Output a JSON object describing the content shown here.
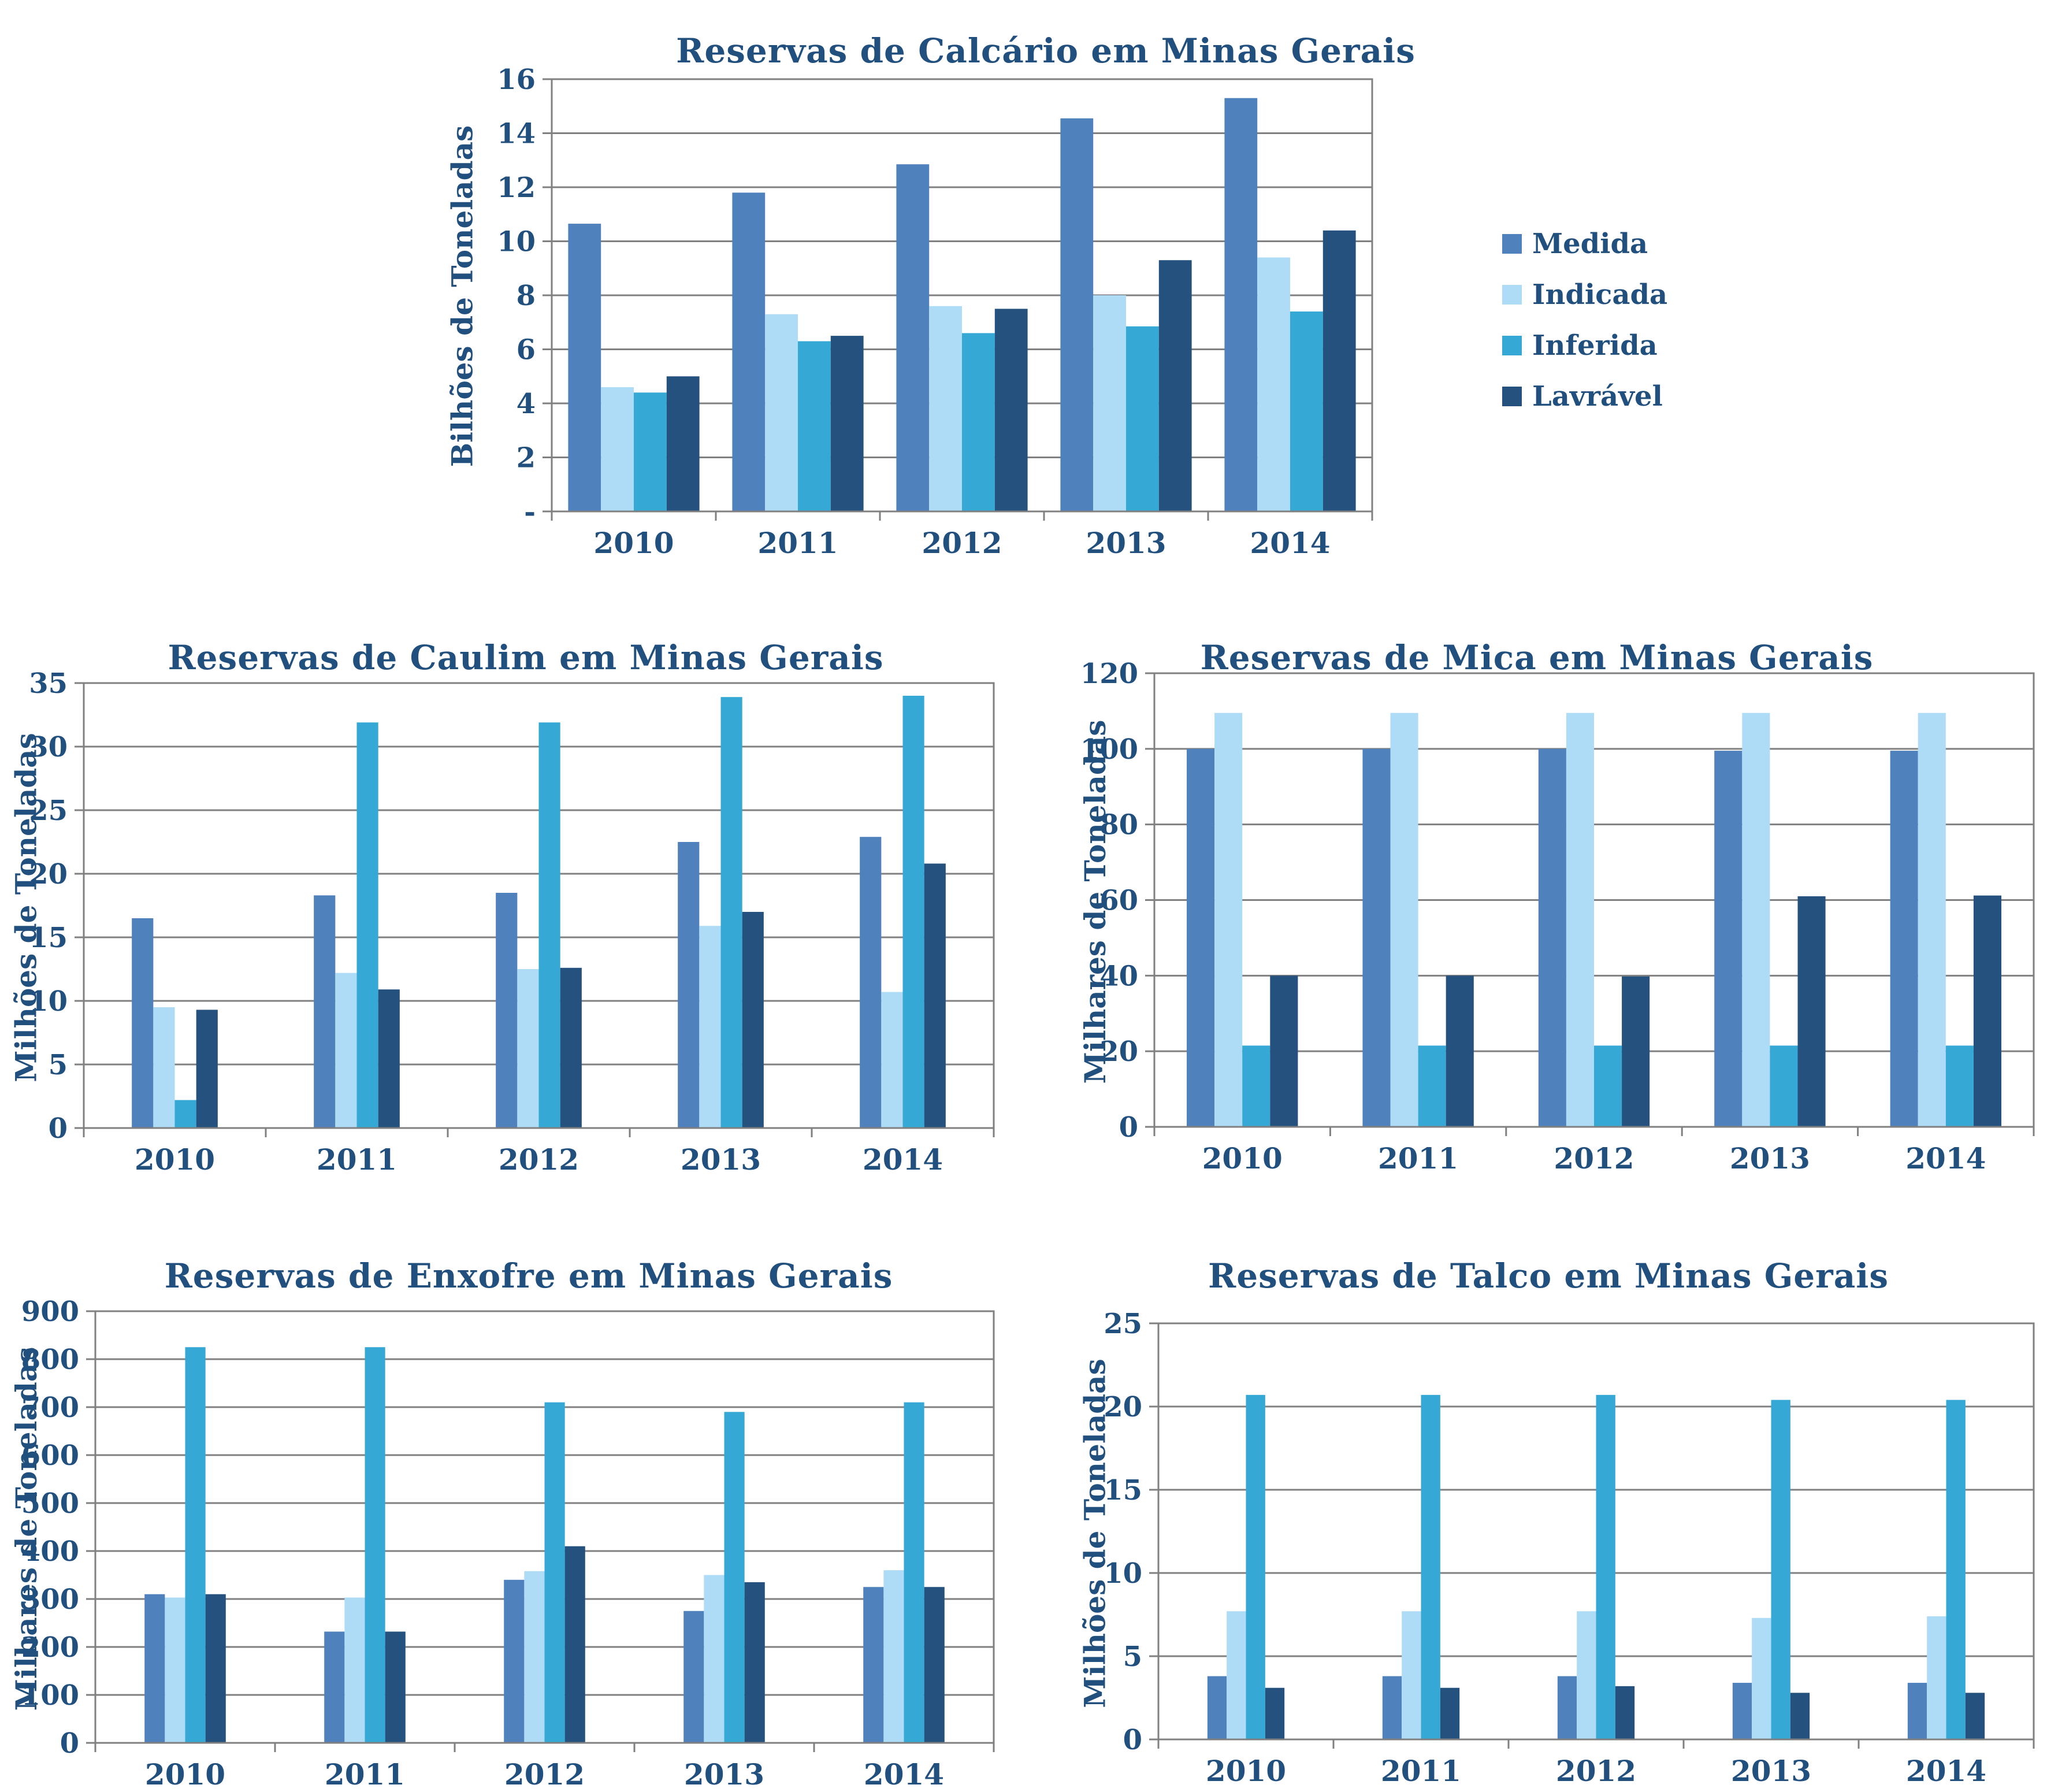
{
  "colors": {
    "text": "#22507E",
    "grid": "#808080",
    "axis": "#808080",
    "background": "#FFFFFF",
    "series": [
      {
        "name": "Medida",
        "color": "#4F81BD"
      },
      {
        "name": "Indicada",
        "color": "#AEDCF6"
      },
      {
        "name": "Inferida",
        "color": "#35A8D5"
      },
      {
        "name": "Lavrável",
        "color": "#24517E"
      }
    ]
  },
  "legend": {
    "position": "right of first chart",
    "items": [
      "Medida",
      "Indicada",
      "Inferida",
      "Lavrável"
    ]
  },
  "chart_data": [
    {
      "id": "calcario",
      "type": "bar",
      "title": "Reservas de Calcário em Minas Gerais",
      "ylabel": "Bilhões de Toneladas",
      "categories": [
        "2010",
        "2011",
        "2012",
        "2013",
        "2014"
      ],
      "series": [
        {
          "name": "Medida",
          "values": [
            10.65,
            11.8,
            12.85,
            14.55,
            15.3
          ]
        },
        {
          "name": "Indicada",
          "values": [
            4.6,
            7.3,
            7.6,
            8.0,
            9.4
          ]
        },
        {
          "name": "Inferida",
          "values": [
            4.4,
            6.3,
            6.6,
            6.85,
            7.4
          ]
        },
        {
          "name": "Lavrável",
          "values": [
            5.0,
            6.5,
            7.5,
            9.3,
            10.4
          ]
        }
      ],
      "ylim": [
        0,
        16
      ],
      "y_ticks": [
        "-",
        "2",
        "4",
        "6",
        "8",
        "10",
        "12",
        "14",
        "16"
      ],
      "grid": true,
      "legend_visible": true
    },
    {
      "id": "caulim",
      "type": "bar",
      "title": "Reservas de Caulim em Minas Gerais",
      "ylabel": "Milhões de Toneladas",
      "categories": [
        "2010",
        "2011",
        "2012",
        "2013",
        "2014"
      ],
      "series": [
        {
          "name": "Medida",
          "values": [
            16.5,
            18.3,
            18.5,
            22.5,
            22.9
          ]
        },
        {
          "name": "Indicada",
          "values": [
            9.5,
            12.2,
            12.5,
            15.9,
            10.7
          ]
        },
        {
          "name": "Inferida",
          "values": [
            2.2,
            31.9,
            31.9,
            33.9,
            34.0
          ]
        },
        {
          "name": "Lavrável",
          "values": [
            9.3,
            10.9,
            12.6,
            17.0,
            20.8
          ]
        }
      ],
      "ylim": [
        0,
        35
      ],
      "y_ticks": [
        "0",
        "5",
        "10",
        "15",
        "20",
        "25",
        "30",
        "35"
      ],
      "grid": true,
      "legend_visible": false
    },
    {
      "id": "mica",
      "type": "bar",
      "title": "Reservas de Mica em Minas Gerais",
      "ylabel": "Milhares de Toneladas",
      "categories": [
        "2010",
        "2011",
        "2012",
        "2013",
        "2014"
      ],
      "series": [
        {
          "name": "Medida",
          "values": [
            100,
            100,
            100,
            99.5,
            99.5
          ]
        },
        {
          "name": "Indicada",
          "values": [
            109.5,
            109.5,
            109.5,
            109.5,
            109.5
          ]
        },
        {
          "name": "Inferida",
          "values": [
            21.5,
            21.5,
            21.5,
            21.5,
            21.5
          ]
        },
        {
          "name": "Lavrável",
          "values": [
            40,
            40,
            39.8,
            61,
            61.2
          ]
        }
      ],
      "ylim": [
        0,
        120
      ],
      "y_ticks": [
        "0",
        "20",
        "40",
        "60",
        "80",
        "100",
        "120"
      ],
      "grid": true,
      "legend_visible": false
    },
    {
      "id": "enxofre",
      "type": "bar",
      "title": "Reservas de Enxofre em Minas Gerais",
      "ylabel": "Milhares de Toneladas",
      "categories": [
        "2010",
        "2011",
        "2012",
        "2013",
        "2014"
      ],
      "series": [
        {
          "name": "Medida",
          "values": [
            310,
            232,
            340,
            275,
            325
          ]
        },
        {
          "name": "Indicada",
          "values": [
            303,
            303,
            358,
            350,
            360
          ]
        },
        {
          "name": "Inferida",
          "values": [
            825,
            825,
            710,
            690,
            710
          ]
        },
        {
          "name": "Lavrável",
          "values": [
            310,
            232,
            410,
            335,
            325
          ]
        }
      ],
      "ylim": [
        0,
        900
      ],
      "y_ticks": [
        "0",
        "100",
        "200",
        "300",
        "400",
        "500",
        "600",
        "700",
        "800",
        "900"
      ],
      "grid": true,
      "legend_visible": false
    },
    {
      "id": "talco",
      "type": "bar",
      "title": "Reservas de Talco em Minas Gerais",
      "ylabel": "Milhões de Toneladas",
      "categories": [
        "2010",
        "2011",
        "2012",
        "2013",
        "2014"
      ],
      "series": [
        {
          "name": "Medida",
          "values": [
            3.8,
            3.8,
            3.8,
            3.4,
            3.4
          ]
        },
        {
          "name": "Indicada",
          "values": [
            7.7,
            7.7,
            7.7,
            7.3,
            7.4
          ]
        },
        {
          "name": "Inferida",
          "values": [
            20.7,
            20.7,
            20.7,
            20.4,
            20.4
          ]
        },
        {
          "name": "Lavrável",
          "values": [
            3.1,
            3.1,
            3.2,
            2.8,
            2.8
          ]
        }
      ],
      "ylim": [
        0,
        25
      ],
      "y_ticks": [
        "0",
        "5",
        "10",
        "15",
        "20",
        "25"
      ],
      "grid": true,
      "legend_visible": false
    }
  ]
}
